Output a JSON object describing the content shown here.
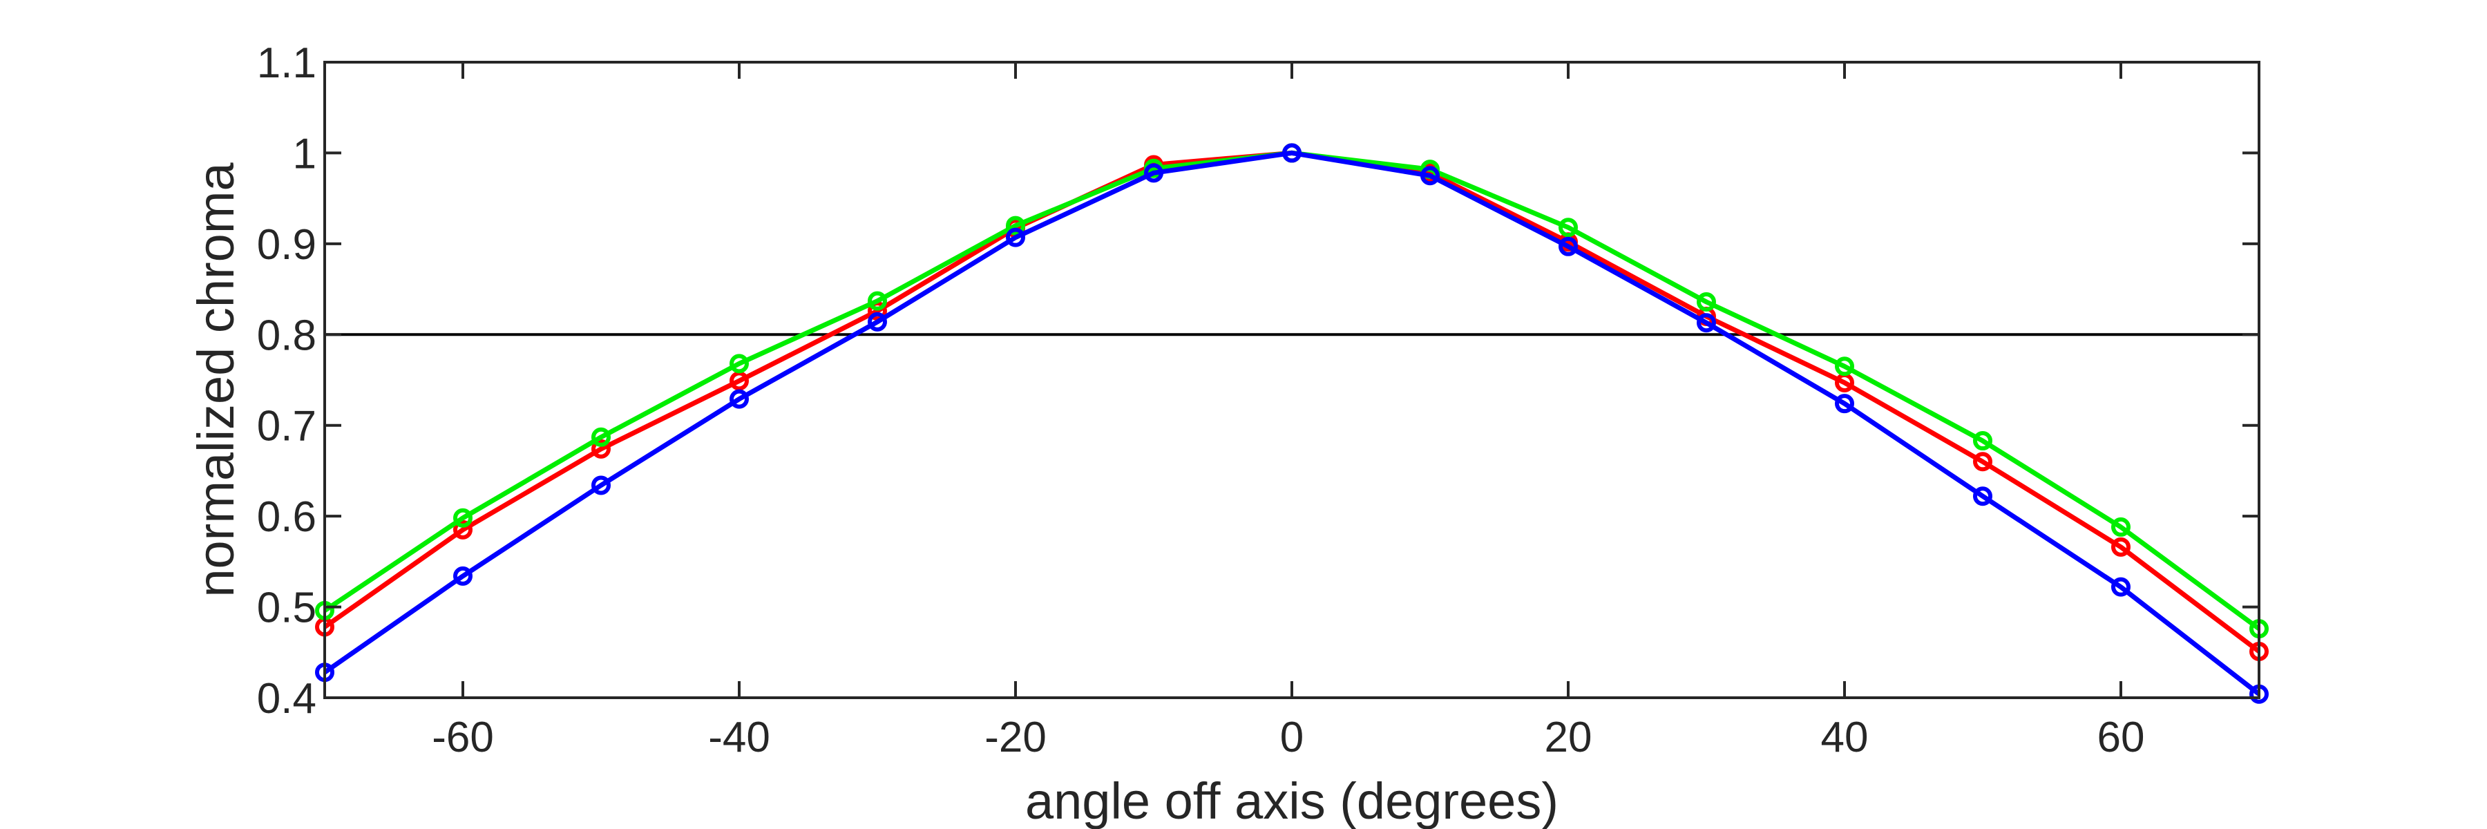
{
  "chart_data": {
    "type": "line",
    "xlabel": "angle off axis (degrees)",
    "ylabel": "normalized chroma",
    "xlim": [
      -70,
      70
    ],
    "ylim": [
      0.4,
      1.1
    ],
    "xticks": [
      -60,
      -40,
      -20,
      0,
      20,
      40,
      60
    ],
    "xtick_labels": [
      "-60",
      "-40",
      "-20",
      "0",
      "20",
      "40",
      "60"
    ],
    "yticks": [
      0.4,
      0.5,
      0.6,
      0.7,
      0.8,
      0.9,
      1.0,
      1.1
    ],
    "ytick_labels": [
      "0.4",
      "0.5",
      "0.6",
      "0.7",
      "0.8",
      "0.9",
      "1",
      "1.1"
    ],
    "grid": false,
    "reference_line": {
      "y": 0.8,
      "color": "#000000"
    },
    "x": [
      -70,
      -60,
      -50,
      -40,
      -30,
      -20,
      -10,
      0,
      10,
      20,
      30,
      40,
      50,
      60,
      70
    ],
    "series": [
      {
        "color": "#ff0000",
        "values": [
          0.478,
          0.585,
          0.674,
          0.749,
          0.826,
          0.917,
          0.987,
          1.0,
          0.978,
          0.902,
          0.82,
          0.747,
          0.66,
          0.566,
          0.451
        ]
      },
      {
        "color": "#00ee00",
        "values": [
          0.496,
          0.598,
          0.687,
          0.768,
          0.837,
          0.92,
          0.983,
          1.0,
          0.982,
          0.918,
          0.836,
          0.765,
          0.683,
          0.588,
          0.476
        ]
      },
      {
        "color": "#0000ff",
        "values": [
          0.428,
          0.534,
          0.634,
          0.729,
          0.814,
          0.907,
          0.978,
          1.0,
          0.975,
          0.897,
          0.813,
          0.724,
          0.622,
          0.522,
          0.404
        ]
      }
    ]
  }
}
